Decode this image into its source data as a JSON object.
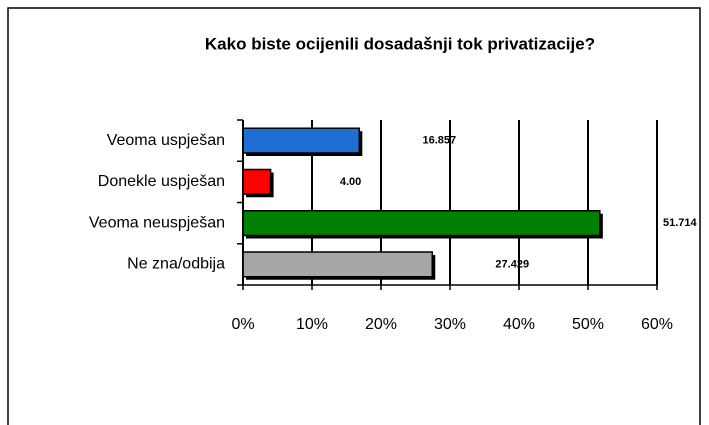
{
  "chart_data": {
    "type": "bar",
    "orientation": "horizontal",
    "title": "Kako biste ocijenili dosadašnji tok privatizacije?",
    "categories": [
      "Veoma uspješan",
      "Donekle uspješan",
      "Veoma neuspješan",
      "Ne zna/odbija"
    ],
    "values": [
      16.857,
      4,
      51.714,
      27.429
    ],
    "value_labels": [
      "16.857",
      "4.00",
      "51.714",
      "27.429"
    ],
    "colors": [
      "#1f6ed4",
      "#ff0000",
      "#008000",
      "#a6a6a6"
    ],
    "xlim": [
      0,
      60
    ],
    "xticks": [
      {
        "value": 0,
        "label": "0%"
      },
      {
        "value": 10,
        "label": "10%"
      },
      {
        "value": 20,
        "label": "20%"
      },
      {
        "value": 30,
        "label": "30%"
      },
      {
        "value": 40,
        "label": "40%"
      },
      {
        "value": 50,
        "label": "50%"
      },
      {
        "value": 60,
        "label": "60%"
      }
    ],
    "grid": true
  }
}
